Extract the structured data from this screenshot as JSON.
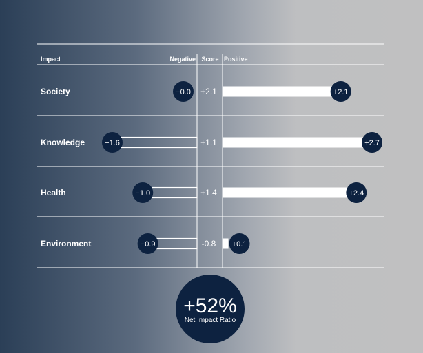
{
  "chart_data": {
    "type": "bar",
    "headers": {
      "impact": "Impact",
      "negative": "Negative",
      "score": "Score",
      "positive": "Positive"
    },
    "categories": [
      "Society",
      "Knowledge",
      "Health",
      "Environment"
    ],
    "series": [
      {
        "name": "Negative",
        "values": [
          0.0,
          1.6,
          1.0,
          0.9
        ],
        "labels": [
          "−0.0",
          "−1.6",
          "−1.0",
          "−0.9"
        ]
      },
      {
        "name": "Positive",
        "values": [
          2.1,
          2.7,
          2.4,
          0.1
        ],
        "labels": [
          "+2.1",
          "+2.7",
          "+2.4",
          "+0.1"
        ]
      },
      {
        "name": "Score",
        "values": [
          2.1,
          1.1,
          1.4,
          -0.8
        ],
        "labels": [
          "+2.1",
          "+1.1",
          "+1.4",
          "-0.8"
        ]
      }
    ],
    "xlim_negative": [
      0,
      5
    ],
    "xlim_positive": [
      0,
      2.7
    ]
  },
  "summary": {
    "value": "+52%",
    "label": "Net Impact Ratio"
  },
  "colors": {
    "badge": "#0d2240",
    "bar": "#ffffff",
    "rule": "#ffffff"
  }
}
